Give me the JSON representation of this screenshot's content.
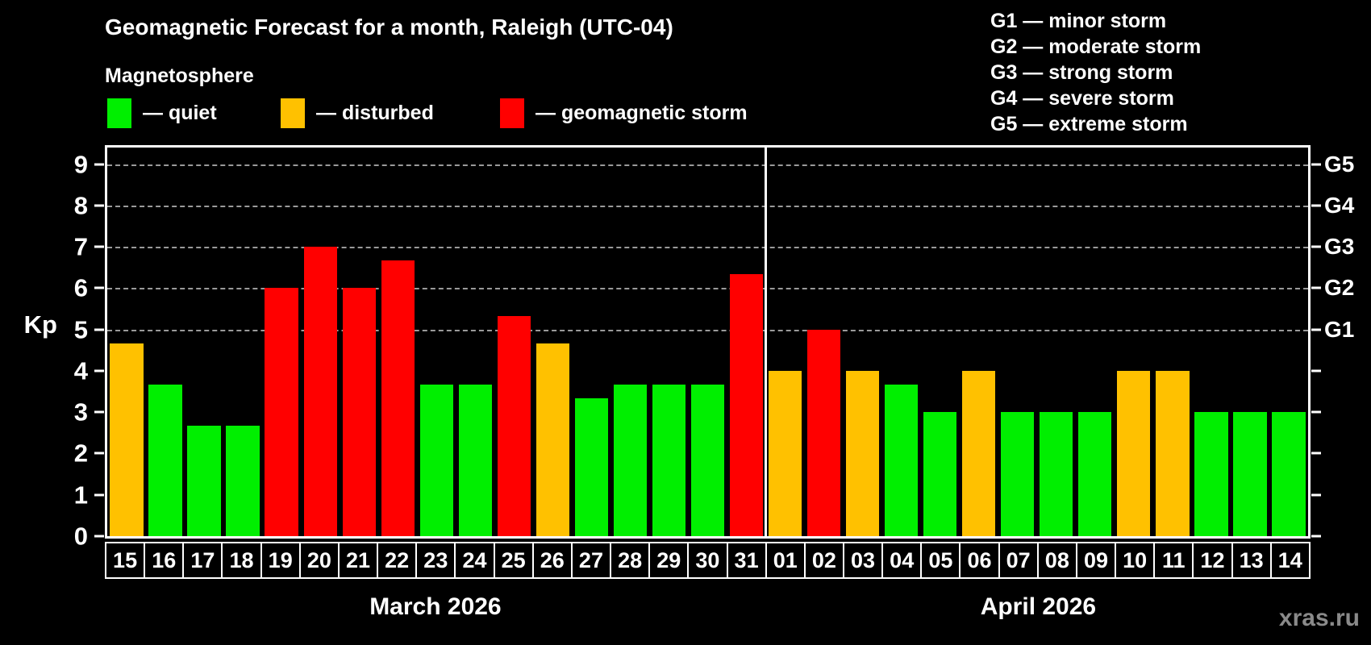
{
  "title": "Geomagnetic Forecast for a month, Raleigh (UTC-04)",
  "legend": {
    "title": "Magnetosphere",
    "items": [
      {
        "swatch": "quiet",
        "label": "— quiet"
      },
      {
        "swatch": "disturbed",
        "label": "— disturbed"
      },
      {
        "swatch": "storm",
        "label": "— geomagnetic storm"
      }
    ]
  },
  "g_scale": [
    "G1 — minor storm",
    "G2 — moderate storm",
    "G3 — strong storm",
    "G4 — severe storm",
    "G5 — extreme storm"
  ],
  "colors": {
    "background": "#000000",
    "grid": "#9a9a9a",
    "frame": "#ffffff",
    "watermark_text": "#8a8a8a",
    "status": {
      "quiet": "#00ef00",
      "disturbed": "#ffc100",
      "storm": "#ff0000"
    }
  },
  "watermark": "xras.ru",
  "chart_data": {
    "type": "bar",
    "ylabel": "Kp",
    "ylim": [
      0,
      9.4
    ],
    "yticks": [
      0,
      1,
      2,
      3,
      4,
      5,
      6,
      7,
      8,
      9
    ],
    "gridlines_kp": [
      5,
      6,
      7,
      8,
      9
    ],
    "grid_on": true,
    "right_axis": [
      {
        "label": "G1",
        "kp": 5
      },
      {
        "label": "G2",
        "kp": 6
      },
      {
        "label": "G3",
        "kp": 7
      },
      {
        "label": "G4",
        "kp": 8
      },
      {
        "label": "G5",
        "kp": 9
      }
    ],
    "months": [
      {
        "label": "March 2026",
        "points": [
          {
            "day": "15",
            "kp": 4.67,
            "status": "disturbed"
          },
          {
            "day": "16",
            "kp": 3.67,
            "status": "quiet"
          },
          {
            "day": "17",
            "kp": 2.67,
            "status": "quiet"
          },
          {
            "day": "18",
            "kp": 2.67,
            "status": "quiet"
          },
          {
            "day": "19",
            "kp": 6.0,
            "status": "storm"
          },
          {
            "day": "20",
            "kp": 7.0,
            "status": "storm"
          },
          {
            "day": "21",
            "kp": 6.0,
            "status": "storm"
          },
          {
            "day": "22",
            "kp": 6.67,
            "status": "storm"
          },
          {
            "day": "23",
            "kp": 3.67,
            "status": "quiet"
          },
          {
            "day": "24",
            "kp": 3.67,
            "status": "quiet"
          },
          {
            "day": "25",
            "kp": 5.33,
            "status": "storm"
          },
          {
            "day": "26",
            "kp": 4.67,
            "status": "disturbed"
          },
          {
            "day": "27",
            "kp": 3.33,
            "status": "quiet"
          },
          {
            "day": "28",
            "kp": 3.67,
            "status": "quiet"
          },
          {
            "day": "29",
            "kp": 3.67,
            "status": "quiet"
          },
          {
            "day": "30",
            "kp": 3.67,
            "status": "quiet"
          },
          {
            "day": "31",
            "kp": 6.33,
            "status": "storm"
          }
        ]
      },
      {
        "label": "April 2026",
        "points": [
          {
            "day": "01",
            "kp": 4.0,
            "status": "disturbed"
          },
          {
            "day": "02",
            "kp": 5.0,
            "status": "storm"
          },
          {
            "day": "03",
            "kp": 4.0,
            "status": "disturbed"
          },
          {
            "day": "04",
            "kp": 3.67,
            "status": "quiet"
          },
          {
            "day": "05",
            "kp": 3.0,
            "status": "quiet"
          },
          {
            "day": "06",
            "kp": 4.0,
            "status": "disturbed"
          },
          {
            "day": "07",
            "kp": 3.0,
            "status": "quiet"
          },
          {
            "day": "08",
            "kp": 3.0,
            "status": "quiet"
          },
          {
            "day": "09",
            "kp": 3.0,
            "status": "quiet"
          },
          {
            "day": "10",
            "kp": 4.0,
            "status": "disturbed"
          },
          {
            "day": "11",
            "kp": 4.0,
            "status": "disturbed"
          },
          {
            "day": "12",
            "kp": 3.0,
            "status": "quiet"
          },
          {
            "day": "13",
            "kp": 3.0,
            "status": "quiet"
          },
          {
            "day": "14",
            "kp": 3.0,
            "status": "quiet"
          }
        ]
      }
    ]
  }
}
